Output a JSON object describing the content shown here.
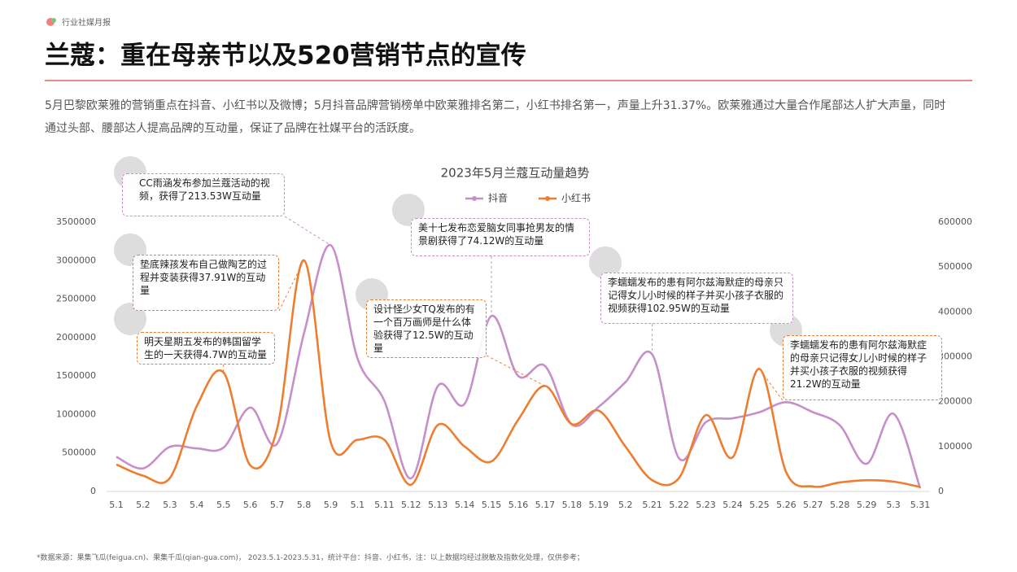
{
  "header": {
    "label": "行业社媒月报",
    "title": "兰蔻：重在母亲节以及520营销节点的宣传",
    "description": "5月巴黎欧莱雅的营销重点在抖音、小红书以及微博；5月抖音品牌营销榜单中欧莱雅排名第二，小红书排名第一，声量上升31.37%。欧莱雅通过大量合作尾部达人扩大声量，同时通过头部、腰部达人提高品牌的互动量，保证了品牌在社媒平台的活跃度。"
  },
  "chart_data": {
    "type": "line",
    "title": "2023年5月兰蔻互动量趋势",
    "categories": [
      "5.1",
      "5.2",
      "5.3",
      "5.4",
      "5.5",
      "5.6",
      "5.7",
      "5.8",
      "5.9",
      "5.1",
      "5.11",
      "5.12",
      "5.13",
      "5.14",
      "5.15",
      "5.16",
      "5.17",
      "5.18",
      "5.19",
      "5.2",
      "5.21",
      "5.22",
      "5.23",
      "5.24",
      "5.25",
      "5.26",
      "5.27",
      "5.28",
      "5.29",
      "5.3",
      "5.31"
    ],
    "series": [
      {
        "name": "抖音",
        "color": "#c68fc8",
        "axis": "y",
        "values": [
          450000,
          300000,
          580000,
          560000,
          570000,
          1090000,
          620000,
          2050000,
          3200000,
          1730000,
          1180000,
          170000,
          1370000,
          1140000,
          2280000,
          1500000,
          1630000,
          870000,
          1100000,
          1420000,
          1780000,
          430000,
          900000,
          950000,
          1030000,
          1160000,
          1030000,
          860000,
          360000,
          1010000,
          40000
        ]
      },
      {
        "name": "小红书",
        "color": "#ed7d31",
        "axis": "y2",
        "values": [
          60000,
          35000,
          30000,
          190000,
          265000,
          58000,
          140000,
          515000,
          110000,
          115000,
          115000,
          15000,
          148000,
          100000,
          67000,
          160000,
          235000,
          150000,
          180000,
          100000,
          25000,
          30000,
          170000,
          76000,
          273000,
          43000,
          11000,
          20000,
          25000,
          22000,
          10000
        ]
      }
    ],
    "ylim": [
      0,
      3500000
    ],
    "yticks": [
      0,
      500000,
      1000000,
      1500000,
      2000000,
      2500000,
      3000000,
      3500000
    ],
    "y2lim": [
      0,
      600000
    ],
    "y2ticks": [
      0,
      100000,
      200000,
      300000,
      400000,
      500000,
      600000
    ],
    "legend": "top",
    "annotations": [
      {
        "text": "CC雨涵发布参加兰蔻活动的视频，获得了213.53W互动量",
        "series": 0,
        "index": 8
      },
      {
        "text": "美十七发布恋爱脑女同事抢男友的情景剧获得了74.12W的互动量",
        "series": 0,
        "index": 14
      },
      {
        "text": "垫底辣孩发布自己做陶艺的过程并变装获得37.91W的互动量",
        "series": 1,
        "index": 7
      },
      {
        "text": "明天星期五发布的韩国留学生的一天获得4.7W的互动量",
        "series": 1,
        "index": 4
      },
      {
        "text": "设计怪少女TQ发布的有一个百万画师是什么体验获得了12.5W的互动量",
        "series": 1,
        "index": 16
      },
      {
        "text": "李蠕蠕发布的患有阿尔兹海默症的母亲只记得女儿小时候的样子并买小孩子衣服的视频获得102.95W的互动量",
        "series": 0,
        "index": 20
      },
      {
        "text": "李蠕蠕发布的患有阿尔兹海默症的母亲只记得女儿小时候的样子并买小孩子衣服的视频获得21.2W的互动量",
        "series": 1,
        "index": 24
      }
    ]
  },
  "footnote": "*数据来源：果集飞瓜(feigua.cn)、果集千瓜(qian-gua.com)， 2023.5.1-2023.5.31，统计平台：抖音、小红书，注：以上数据均经过脱敏及指数化处理，仅供参考；"
}
